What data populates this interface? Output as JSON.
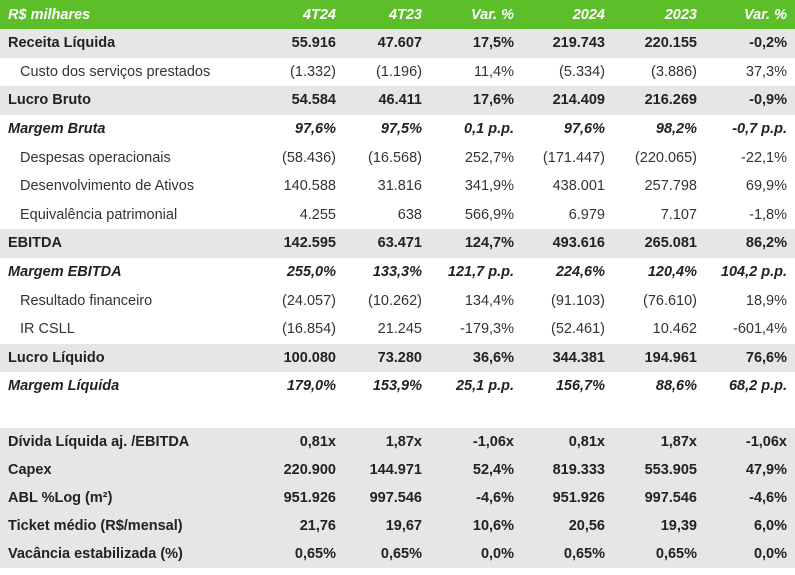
{
  "header": [
    "R$ milhares",
    "4T24",
    "4T23",
    "Var. %",
    "2024",
    "2023",
    "Var. %"
  ],
  "rows": [
    {
      "style": "shade bold",
      "cells": [
        "Receita Líquida",
        "55.916",
        "47.607",
        "17,5%",
        "219.743",
        "220.155",
        "-0,2%"
      ]
    },
    {
      "style": "sub",
      "cells": [
        "Custo dos serviços prestados",
        "(1.332)",
        "(1.196)",
        "11,4%",
        "(5.334)",
        "(3.886)",
        "37,3%"
      ]
    },
    {
      "style": "shade bold",
      "cells": [
        "Lucro Bruto",
        "54.584",
        "46.411",
        "17,6%",
        "214.409",
        "216.269",
        "-0,9%"
      ]
    },
    {
      "style": "ital",
      "cells": [
        "Margem Bruta",
        "97,6%",
        "97,5%",
        "0,1 p.p.",
        "97,6%",
        "98,2%",
        "-0,7 p.p."
      ]
    },
    {
      "style": "sub",
      "cells": [
        "Despesas operacionais",
        "(58.436)",
        "(16.568)",
        "252,7%",
        "(171.447)",
        "(220.065)",
        "-22,1%"
      ]
    },
    {
      "style": "sub",
      "cells": [
        "Desenvolvimento de Ativos",
        "140.588",
        "31.816",
        "341,9%",
        "438.001",
        "257.798",
        "69,9%"
      ]
    },
    {
      "style": "sub",
      "cells": [
        "Equivalência patrimonial",
        "4.255",
        "638",
        "566,9%",
        "6.979",
        "7.107",
        "-1,8%"
      ]
    },
    {
      "style": "shade bold",
      "cells": [
        "EBITDA",
        "142.595",
        "63.471",
        "124,7%",
        "493.616",
        "265.081",
        "86,2%"
      ]
    },
    {
      "style": "ital",
      "cells": [
        "Margem EBITDA",
        "255,0%",
        "133,3%",
        "121,7 p.p.",
        "224,6%",
        "120,4%",
        "104,2 p.p."
      ]
    },
    {
      "style": "sub",
      "cells": [
        "Resultado financeiro",
        "(24.057)",
        "(10.262)",
        "134,4%",
        "(91.103)",
        "(76.610)",
        "18,9%"
      ]
    },
    {
      "style": "sub",
      "cells": [
        "IR CSLL",
        "(16.854)",
        "21.245",
        "-179,3%",
        "(52.461)",
        "10.462",
        "-601,4%"
      ]
    },
    {
      "style": "shade bold",
      "cells": [
        "Lucro Líquido",
        "100.080",
        "73.280",
        "36,6%",
        "344.381",
        "194.961",
        "76,6%"
      ]
    },
    {
      "style": "ital",
      "cells": [
        "Margem Líquida",
        "179,0%",
        "153,9%",
        "25,1 p.p.",
        "156,7%",
        "88,6%",
        "68,2 p.p."
      ]
    }
  ],
  "bottom_rows": [
    [
      "Dívida Líquida aj. /EBITDA",
      "0,81x",
      "1,87x",
      "-1,06x",
      "0,81x",
      "1,87x",
      "-1,06x"
    ],
    [
      "Capex",
      "220.900",
      "144.971",
      "52,4%",
      "819.333",
      "553.905",
      "47,9%"
    ],
    [
      "ABL %Log (m²)",
      "951.926",
      "997.546",
      "-4,6%",
      "951.926",
      "997.546",
      "-4,6%"
    ],
    [
      "Ticket médio (R$/mensal)",
      "21,76",
      "19,67",
      "10,6%",
      "20,56",
      "19,39",
      "6,0%"
    ],
    [
      "Vacância estabilizada (%)",
      "0,65%",
      "0,65%",
      "0,0%",
      "0,65%",
      "0,65%",
      "0,0%"
    ]
  ],
  "colors": {
    "header_green": "#5cbf2a",
    "shade_gray": "#e6e6e6"
  }
}
